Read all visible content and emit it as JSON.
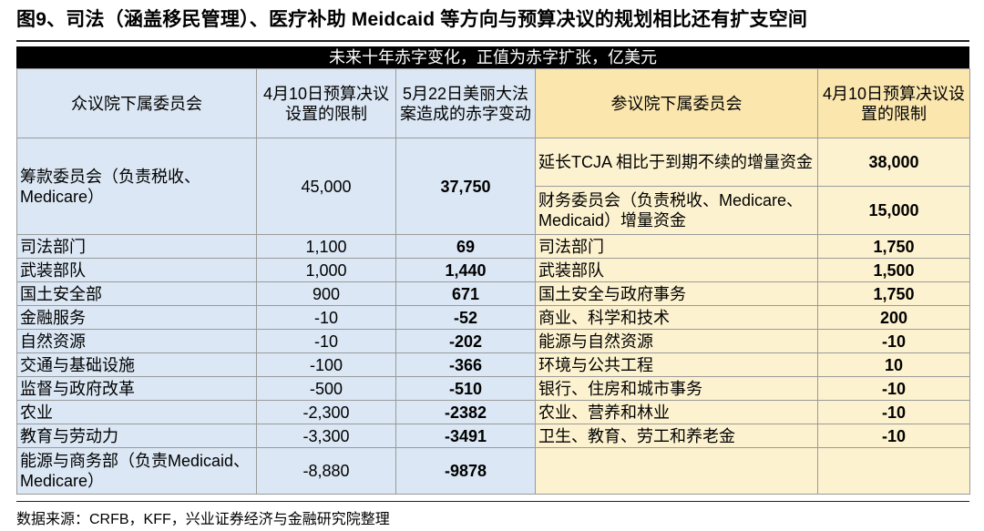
{
  "title": "图9、司法（涵盖移民管理）、医疗补助 Meidcaid 等方向与预算决议的规划相比还有扩支空间",
  "table": {
    "banner": "未来十年赤字变化，正值为赤字扩张，亿美元",
    "headers": {
      "house_committee": "众议院下属委员会",
      "house_limit": "4月10日预算决议设置的限制",
      "house_change": "5月22日美丽大法案造成的赤字变动",
      "senate_committee": "参议院下属委员会",
      "senate_limit": "4月10日预算决议设置的限制"
    },
    "house_first": {
      "name": "筹款委员会（负责税收、Medicare）",
      "limit": "45,000",
      "change": "37,750"
    },
    "senate_first": [
      {
        "name": "延长TCJA 相比于到期不续的增量资金",
        "limit": "38,000"
      },
      {
        "name": "财务委员会（负责税收、Medicare、Medicaid）增量资金",
        "limit": "15,000"
      }
    ],
    "rows": [
      {
        "house_name": "司法部门",
        "house_limit": "1,100",
        "house_change": "69",
        "senate_name": "司法部门",
        "senate_limit": "1,750"
      },
      {
        "house_name": "武装部队",
        "house_limit": "1,000",
        "house_change": "1,440",
        "senate_name": "武装部队",
        "senate_limit": "1,500"
      },
      {
        "house_name": "国土安全部",
        "house_limit": "900",
        "house_change": "671",
        "senate_name": "国土安全与政府事务",
        "senate_limit": "1,750"
      },
      {
        "house_name": "金融服务",
        "house_limit": "-10",
        "house_change": "-52",
        "senate_name": "商业、科学和技术",
        "senate_limit": "200"
      },
      {
        "house_name": "自然资源",
        "house_limit": "-10",
        "house_change": "-202",
        "senate_name": "能源与自然资源",
        "senate_limit": "-10"
      },
      {
        "house_name": "交通与基础设施",
        "house_limit": "-100",
        "house_change": "-366",
        "senate_name": "环境与公共工程",
        "senate_limit": "10"
      },
      {
        "house_name": "监督与政府改革",
        "house_limit": "-500",
        "house_change": "-510",
        "senate_name": "银行、住房和城市事务",
        "senate_limit": "-10"
      },
      {
        "house_name": "农业",
        "house_limit": "-2,300",
        "house_change": "-2382",
        "senate_name": "农业、营养和林业",
        "senate_limit": "-10"
      },
      {
        "house_name": "教育与劳动力",
        "house_limit": "-3,300",
        "house_change": "-3491",
        "senate_name": "卫生、教育、劳工和养老金",
        "senate_limit": "-10"
      },
      {
        "house_name": "能源与商务部（负责Medicaid、Medicare）",
        "house_limit": "-8,880",
        "house_change": "-9878",
        "senate_name": "",
        "senate_limit": ""
      }
    ]
  },
  "source": "数据来源：CRFB，KFF，兴业证券经济与金融研究院整理"
}
